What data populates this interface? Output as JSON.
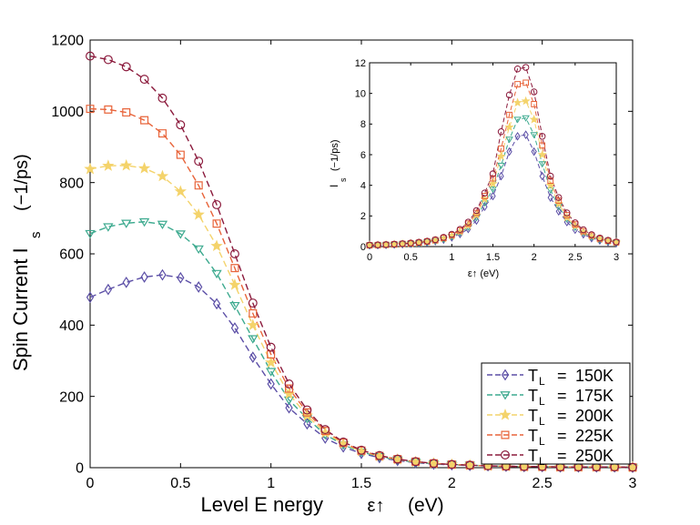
{
  "chart_data": [
    {
      "type": "line",
      "title": "",
      "xlabel": "Level E nergy",
      "xlabel_symbol": "ε↑",
      "xlabel_unit": "(eV)",
      "ylabel": "Spin Current I",
      "ylabel_sub": "s",
      "ylabel_unit": "(−1/ps)",
      "xlim": [
        0,
        3
      ],
      "ylim": [
        0,
        1200
      ],
      "xticks": [
        "0",
        "0.5",
        "1",
        "1.5",
        "2",
        "2.5",
        "3"
      ],
      "yticks": [
        "0",
        "200",
        "400",
        "600",
        "800",
        "1000",
        "1200"
      ],
      "grid": false,
      "legend_position": "bottom-right",
      "x": [
        0,
        0.1,
        0.2,
        0.3,
        0.4,
        0.5,
        0.6,
        0.7,
        0.8,
        0.9,
        1.0,
        1.1,
        1.2,
        1.3,
        1.4,
        1.5,
        1.6,
        1.7,
        1.8,
        1.9,
        2.0,
        2.1,
        2.2,
        2.3,
        2.4,
        2.5,
        2.6,
        2.7,
        2.8,
        2.9,
        3.0
      ],
      "series": [
        {
          "name": "150K",
          "label_prefix": "T",
          "label_sub": "L",
          "marker": "diamond",
          "color": "#5b4ea6",
          "values": [
            478,
            500,
            520,
            535,
            541,
            533,
            507,
            460,
            392,
            310,
            235,
            168,
            123,
            83,
            58,
            40,
            28,
            20,
            14,
            10,
            8,
            6,
            5,
            4,
            3,
            3,
            2,
            2,
            2,
            2,
            1
          ]
        },
        {
          "name": "175K",
          "label_prefix": "T",
          "label_sub": "L",
          "marker": "triangle-down",
          "color": "#3daa8f",
          "values": [
            657,
            676,
            686,
            690,
            683,
            656,
            614,
            545,
            455,
            362,
            270,
            190,
            138,
            93,
            64,
            44,
            31,
            22,
            15,
            11,
            9,
            7,
            5,
            4,
            3,
            3,
            2,
            2,
            2,
            2,
            1
          ]
        },
        {
          "name": "200K",
          "label_prefix": "T",
          "label_sub": "L",
          "marker": "star",
          "color": "#f4d36b",
          "values": [
            838,
            847,
            848,
            840,
            818,
            775,
            710,
            622,
            513,
            400,
            295,
            207,
            146,
            98,
            67,
            46,
            32,
            23,
            16,
            12,
            9,
            7,
            5,
            4,
            3,
            3,
            2,
            2,
            2,
            2,
            1
          ]
        },
        {
          "name": "225K",
          "label_prefix": "T",
          "label_sub": "L",
          "marker": "square",
          "color": "#e8643a",
          "values": [
            1007,
            1005,
            997,
            975,
            938,
            878,
            792,
            685,
            560,
            433,
            318,
            222,
            155,
            103,
            70,
            48,
            33,
            24,
            17,
            12,
            9,
            7,
            5,
            4,
            3,
            3,
            2,
            2,
            2,
            2,
            1
          ]
        },
        {
          "name": "250K",
          "label_prefix": "T",
          "label_sub": "L",
          "marker": "circle",
          "color": "#8b1a3c",
          "values": [
            1155,
            1145,
            1125,
            1090,
            1037,
            962,
            860,
            738,
            600,
            462,
            338,
            235,
            162,
            107,
            72,
            49,
            34,
            24,
            17,
            12,
            9,
            7,
            5,
            4,
            3,
            3,
            2,
            2,
            2,
            2,
            1
          ]
        }
      ],
      "legend_equals": "="
    },
    {
      "type": "line",
      "title": "",
      "xlabel": "ε↑ (eV)",
      "ylabel": "I",
      "ylabel_sub": "s",
      "ylabel_unit": "(−1/ps)",
      "xlim": [
        0,
        3
      ],
      "ylim": [
        0,
        12
      ],
      "xticks": [
        "0",
        "0.5",
        "1",
        "1.5",
        "2",
        "2.5",
        "3"
      ],
      "yticks": [
        "0",
        "2",
        "4",
        "6",
        "8",
        "10",
        "12"
      ],
      "grid": false,
      "legend_position": "none",
      "x": [
        0,
        0.1,
        0.2,
        0.3,
        0.4,
        0.5,
        0.6,
        0.7,
        0.8,
        0.9,
        1.0,
        1.1,
        1.2,
        1.3,
        1.4,
        1.5,
        1.6,
        1.7,
        1.8,
        1.9,
        2.0,
        2.1,
        2.2,
        2.3,
        2.4,
        2.5,
        2.6,
        2.7,
        2.8,
        2.9,
        3.0
      ],
      "series": [
        {
          "name": "150K",
          "marker": "diamond",
          "color": "#5b4ea6",
          "values": [
            0.08,
            0.09,
            0.11,
            0.13,
            0.15,
            0.18,
            0.22,
            0.27,
            0.35,
            0.45,
            0.6,
            0.82,
            1.15,
            1.7,
            2.6,
            3.3,
            4.6,
            6.2,
            7.2,
            7.3,
            6.2,
            4.6,
            3.2,
            2.3,
            1.6,
            1.1,
            0.8,
            0.55,
            0.4,
            0.3,
            0.22
          ]
        },
        {
          "name": "175K",
          "marker": "triangle-down",
          "color": "#3daa8f",
          "values": [
            0.08,
            0.09,
            0.11,
            0.13,
            0.16,
            0.19,
            0.23,
            0.29,
            0.37,
            0.48,
            0.65,
            0.9,
            1.27,
            1.9,
            2.85,
            3.75,
            5.3,
            7.0,
            8.3,
            8.4,
            7.3,
            5.4,
            3.7,
            2.6,
            1.8,
            1.25,
            0.9,
            0.62,
            0.45,
            0.33,
            0.25
          ]
        },
        {
          "name": "200K",
          "marker": "star",
          "color": "#f4d36b",
          "values": [
            0.09,
            0.1,
            0.12,
            0.14,
            0.17,
            0.2,
            0.25,
            0.31,
            0.4,
            0.52,
            0.7,
            0.97,
            1.38,
            2.05,
            3.1,
            4.1,
            5.9,
            7.8,
            9.4,
            9.5,
            8.3,
            6.0,
            4.0,
            2.8,
            1.9,
            1.35,
            0.95,
            0.68,
            0.49,
            0.36,
            0.27
          ]
        },
        {
          "name": "225K",
          "marker": "square",
          "color": "#e8643a",
          "values": [
            0.09,
            0.1,
            0.12,
            0.15,
            0.18,
            0.21,
            0.26,
            0.33,
            0.42,
            0.56,
            0.75,
            1.05,
            1.5,
            2.2,
            3.3,
            4.45,
            6.4,
            8.6,
            10.6,
            10.7,
            9.3,
            6.6,
            4.3,
            3.0,
            2.05,
            1.45,
            1.0,
            0.72,
            0.52,
            0.38,
            0.28
          ]
        },
        {
          "name": "250K",
          "marker": "circle",
          "color": "#8b1a3c",
          "values": [
            0.1,
            0.11,
            0.13,
            0.16,
            0.19,
            0.23,
            0.28,
            0.35,
            0.45,
            0.6,
            0.8,
            1.12,
            1.6,
            2.35,
            3.5,
            4.75,
            7.5,
            9.9,
            11.6,
            11.7,
            10.1,
            7.2,
            4.6,
            3.2,
            2.2,
            1.55,
            1.1,
            0.78,
            0.56,
            0.41,
            0.3
          ]
        }
      ]
    }
  ]
}
